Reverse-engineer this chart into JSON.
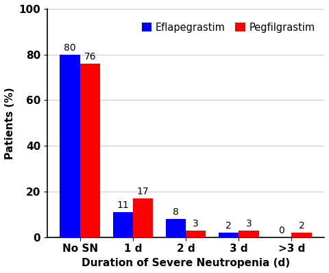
{
  "categories": [
    "No SN",
    "1 d",
    "2 d",
    "3 d",
    ">3 d"
  ],
  "eflapegrastim": [
    80,
    11,
    8,
    2,
    0
  ],
  "pegfilgrastim": [
    76,
    17,
    3,
    3,
    2
  ],
  "eflapegrastim_color": "#0000FF",
  "pegfilgrastim_color": "#FF0000",
  "xlabel": "Duration of Severe Neutropenia (d)",
  "ylabel": "Patients (%)",
  "ylim": [
    0,
    100
  ],
  "yticks": [
    0,
    20,
    40,
    60,
    80,
    100
  ],
  "legend_labels": [
    "Eflapegrastim",
    "Pegfilgrastim"
  ],
  "bar_width": 0.38,
  "label_fontsize": 11,
  "tick_fontsize": 11,
  "legend_fontsize": 10.5,
  "value_fontsize": 10
}
